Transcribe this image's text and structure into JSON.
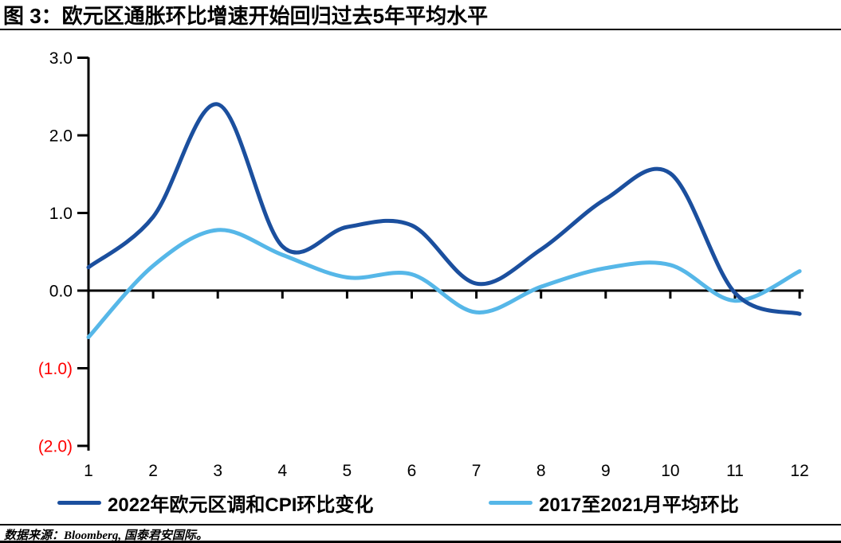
{
  "header": {
    "title": "图 3：欧元区通胀环比增速开始回归过去5年平均水平"
  },
  "source_note": "数据来源：Bloomberg, 国泰君安国际。",
  "colors": {
    "series1_dark_blue": "#1b4f9e",
    "series2_light_blue": "#56b7e8",
    "negative_tick_red": "#ff0000",
    "axis_black": "#000000"
  },
  "chart_data": {
    "type": "line",
    "title": "图 3：欧元区通胀环比增速开始回归过去5年平均水平",
    "x": [
      1,
      2,
      3,
      4,
      5,
      6,
      7,
      8,
      9,
      10,
      11,
      12
    ],
    "xtick_labels": [
      "1",
      "2",
      "3",
      "4",
      "5",
      "6",
      "7",
      "8",
      "9",
      "10",
      "11",
      "12"
    ],
    "ytick_values": [
      3,
      2,
      1,
      0,
      -1,
      -2
    ],
    "ytick_labels": [
      "3.0",
      "2.0",
      "1.0",
      "0.0",
      "(1.0)",
      "(2.0)"
    ],
    "ylim": [
      -2.0,
      3.0
    ],
    "xlabel": "",
    "ylabel": "",
    "grid": false,
    "legend_position": "bottom",
    "series": [
      {
        "name": "2022年欧元区调和CPI环比变化",
        "color": "#1b4f9e",
        "values": [
          0.3,
          0.95,
          2.4,
          0.57,
          0.82,
          0.84,
          0.09,
          0.53,
          1.18,
          1.51,
          -0.03,
          -0.3
        ]
      },
      {
        "name": "2017至2021月平均环比",
        "color": "#56b7e8",
        "values": [
          -0.6,
          0.32,
          0.78,
          0.46,
          0.17,
          0.21,
          -0.28,
          0.05,
          0.29,
          0.33,
          -0.13,
          0.25
        ]
      }
    ]
  }
}
